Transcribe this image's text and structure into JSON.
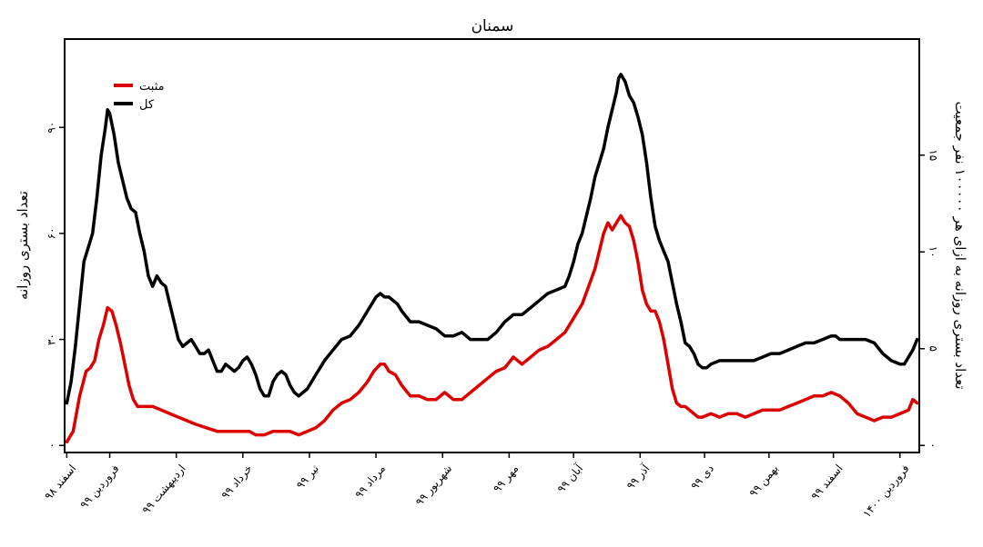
{
  "chart_data": {
    "type": "line",
    "title": "سمنان",
    "ylabel_left": "تعداد بستری روزانه",
    "ylabel_right": "تعداد بستری روزانه به ازای هر ۱۰۰۰۰۰ نفر جمعیت",
    "yticks_left": [
      {
        "value": 0,
        "label": "۰"
      },
      {
        "value": 30,
        "label": "۳۰"
      },
      {
        "value": 60,
        "label": "۶۰"
      },
      {
        "value": 90,
        "label": "۹۰"
      }
    ],
    "yticks_right": [
      {
        "value": 0,
        "label": "۰"
      },
      {
        "value": 5,
        "label": "۵"
      },
      {
        "value": 10,
        "label": "۱۰"
      },
      {
        "value": 15,
        "label": "۱۵"
      }
    ],
    "xticks": [
      {
        "day": 0,
        "label": "اسفند ۹۸"
      },
      {
        "day": 20,
        "label": "فروردین ۹۹"
      },
      {
        "day": 51,
        "label": "اردیبهشت ۹۹"
      },
      {
        "day": 82,
        "label": "خرداد ۹۹"
      },
      {
        "day": 113,
        "label": "تیر ۹۹"
      },
      {
        "day": 144,
        "label": "مرداد ۹۹"
      },
      {
        "day": 175,
        "label": "شهریور ۹۹"
      },
      {
        "day": 206,
        "label": "مهر ۹۹"
      },
      {
        "day": 236,
        "label": "آبان ۹۹"
      },
      {
        "day": 267,
        "label": "آذر ۹۹"
      },
      {
        "day": 297,
        "label": "دی ۹۹"
      },
      {
        "day": 327,
        "label": "بهمن ۹۹"
      },
      {
        "day": 357,
        "label": "اسفند ۹۹"
      },
      {
        "day": 388,
        "label": "فروردین ۱۴۰۰"
      }
    ],
    "xlim": [
      -1,
      397
    ],
    "ylim_left": [
      -2,
      115
    ],
    "ylim_right": [
      -0.365,
      21.0
    ],
    "legend_position": "top-left",
    "series": [
      {
        "name": "مثبت",
        "color": "#dd0000",
        "points": [
          [
            0,
            1
          ],
          [
            3,
            4
          ],
          [
            6,
            14
          ],
          [
            9,
            21
          ],
          [
            11,
            22
          ],
          [
            13,
            24
          ],
          [
            15,
            30
          ],
          [
            17,
            34
          ],
          [
            19,
            39
          ],
          [
            21,
            38
          ],
          [
            23,
            34
          ],
          [
            25,
            29
          ],
          [
            27,
            23
          ],
          [
            29,
            17
          ],
          [
            31,
            13
          ],
          [
            33,
            11
          ],
          [
            36,
            11
          ],
          [
            40,
            11
          ],
          [
            44,
            10
          ],
          [
            48,
            9
          ],
          [
            52,
            8
          ],
          [
            56,
            7
          ],
          [
            60,
            6
          ],
          [
            65,
            5
          ],
          [
            70,
            4
          ],
          [
            75,
            4
          ],
          [
            80,
            4
          ],
          [
            85,
            4
          ],
          [
            88,
            3
          ],
          [
            92,
            3
          ],
          [
            96,
            4
          ],
          [
            100,
            4
          ],
          [
            104,
            4
          ],
          [
            108,
            3
          ],
          [
            112,
            4
          ],
          [
            116,
            5
          ],
          [
            120,
            7
          ],
          [
            124,
            10
          ],
          [
            128,
            12
          ],
          [
            132,
            13
          ],
          [
            136,
            15
          ],
          [
            140,
            18
          ],
          [
            143,
            21
          ],
          [
            146,
            23
          ],
          [
            148,
            23
          ],
          [
            150,
            21
          ],
          [
            153,
            20
          ],
          [
            156,
            17
          ],
          [
            160,
            14
          ],
          [
            164,
            14
          ],
          [
            168,
            13
          ],
          [
            172,
            13
          ],
          [
            176,
            15
          ],
          [
            180,
            13
          ],
          [
            184,
            13
          ],
          [
            188,
            15
          ],
          [
            192,
            17
          ],
          [
            196,
            19
          ],
          [
            200,
            21
          ],
          [
            204,
            22
          ],
          [
            208,
            25
          ],
          [
            212,
            23
          ],
          [
            216,
            25
          ],
          [
            220,
            27
          ],
          [
            224,
            28
          ],
          [
            228,
            30
          ],
          [
            232,
            32
          ],
          [
            236,
            36
          ],
          [
            240,
            40
          ],
          [
            243,
            45
          ],
          [
            246,
            50
          ],
          [
            248,
            55
          ],
          [
            250,
            60
          ],
          [
            252,
            63
          ],
          [
            254,
            61
          ],
          [
            256,
            63
          ],
          [
            258,
            65
          ],
          [
            260,
            63
          ],
          [
            262,
            62
          ],
          [
            264,
            58
          ],
          [
            266,
            52
          ],
          [
            268,
            44
          ],
          [
            270,
            40
          ],
          [
            272,
            38
          ],
          [
            274,
            38
          ],
          [
            276,
            35
          ],
          [
            278,
            30
          ],
          [
            280,
            23
          ],
          [
            282,
            16
          ],
          [
            284,
            12
          ],
          [
            286,
            11
          ],
          [
            288,
            11
          ],
          [
            290,
            10
          ],
          [
            292,
            9
          ],
          [
            294,
            8
          ],
          [
            296,
            8
          ],
          [
            300,
            9
          ],
          [
            304,
            8
          ],
          [
            308,
            9
          ],
          [
            312,
            9
          ],
          [
            316,
            8
          ],
          [
            320,
            9
          ],
          [
            324,
            10
          ],
          [
            328,
            10
          ],
          [
            332,
            10
          ],
          [
            336,
            11
          ],
          [
            340,
            12
          ],
          [
            344,
            13
          ],
          [
            348,
            14
          ],
          [
            352,
            14
          ],
          [
            356,
            15
          ],
          [
            360,
            14
          ],
          [
            364,
            12
          ],
          [
            368,
            9
          ],
          [
            372,
            8
          ],
          [
            376,
            7
          ],
          [
            380,
            8
          ],
          [
            384,
            8
          ],
          [
            388,
            9
          ],
          [
            392,
            10
          ],
          [
            394,
            13
          ],
          [
            396,
            12
          ]
        ]
      },
      {
        "name": "کل",
        "color": "#000000",
        "points": [
          [
            0,
            12
          ],
          [
            2,
            18
          ],
          [
            4,
            28
          ],
          [
            6,
            40
          ],
          [
            8,
            52
          ],
          [
            10,
            56
          ],
          [
            12,
            60
          ],
          [
            14,
            70
          ],
          [
            16,
            82
          ],
          [
            18,
            90
          ],
          [
            19,
            95
          ],
          [
            20,
            94
          ],
          [
            22,
            88
          ],
          [
            24,
            80
          ],
          [
            26,
            75
          ],
          [
            28,
            70
          ],
          [
            30,
            67
          ],
          [
            32,
            66
          ],
          [
            34,
            60
          ],
          [
            36,
            55
          ],
          [
            38,
            48
          ],
          [
            40,
            45
          ],
          [
            42,
            48
          ],
          [
            44,
            46
          ],
          [
            46,
            45
          ],
          [
            48,
            40
          ],
          [
            50,
            35
          ],
          [
            52,
            30
          ],
          [
            54,
            28
          ],
          [
            56,
            29
          ],
          [
            58,
            30
          ],
          [
            60,
            28
          ],
          [
            62,
            26
          ],
          [
            64,
            26
          ],
          [
            66,
            27
          ],
          [
            68,
            24
          ],
          [
            70,
            21
          ],
          [
            72,
            21
          ],
          [
            74,
            23
          ],
          [
            76,
            22
          ],
          [
            78,
            21
          ],
          [
            80,
            22
          ],
          [
            82,
            24
          ],
          [
            84,
            25
          ],
          [
            86,
            23
          ],
          [
            88,
            20
          ],
          [
            90,
            16
          ],
          [
            92,
            14
          ],
          [
            94,
            14
          ],
          [
            96,
            18
          ],
          [
            98,
            20
          ],
          [
            100,
            21
          ],
          [
            102,
            20
          ],
          [
            104,
            17
          ],
          [
            106,
            15
          ],
          [
            108,
            14
          ],
          [
            110,
            15
          ],
          [
            112,
            16
          ],
          [
            114,
            18
          ],
          [
            116,
            20
          ],
          [
            118,
            22
          ],
          [
            120,
            24
          ],
          [
            124,
            27
          ],
          [
            128,
            30
          ],
          [
            132,
            31
          ],
          [
            136,
            34
          ],
          [
            140,
            38
          ],
          [
            142,
            40
          ],
          [
            144,
            42
          ],
          [
            146,
            43
          ],
          [
            148,
            42
          ],
          [
            150,
            42
          ],
          [
            152,
            41
          ],
          [
            154,
            40
          ],
          [
            156,
            38
          ],
          [
            160,
            35
          ],
          [
            164,
            35
          ],
          [
            168,
            34
          ],
          [
            172,
            33
          ],
          [
            176,
            31
          ],
          [
            180,
            31
          ],
          [
            184,
            32
          ],
          [
            188,
            30
          ],
          [
            192,
            30
          ],
          [
            196,
            30
          ],
          [
            200,
            32
          ],
          [
            204,
            35
          ],
          [
            208,
            37
          ],
          [
            212,
            37
          ],
          [
            216,
            39
          ],
          [
            220,
            41
          ],
          [
            224,
            43
          ],
          [
            228,
            44
          ],
          [
            232,
            45
          ],
          [
            234,
            48
          ],
          [
            236,
            52
          ],
          [
            238,
            57
          ],
          [
            240,
            60
          ],
          [
            242,
            65
          ],
          [
            244,
            70
          ],
          [
            246,
            76
          ],
          [
            248,
            80
          ],
          [
            250,
            84
          ],
          [
            252,
            90
          ],
          [
            254,
            95
          ],
          [
            256,
            100
          ],
          [
            257,
            104
          ],
          [
            258,
            105
          ],
          [
            260,
            103
          ],
          [
            262,
            99
          ],
          [
            264,
            97
          ],
          [
            266,
            93
          ],
          [
            268,
            88
          ],
          [
            270,
            80
          ],
          [
            272,
            70
          ],
          [
            274,
            62
          ],
          [
            276,
            58
          ],
          [
            278,
            55
          ],
          [
            280,
            52
          ],
          [
            282,
            46
          ],
          [
            284,
            40
          ],
          [
            286,
            35
          ],
          [
            288,
            29
          ],
          [
            290,
            28
          ],
          [
            292,
            26
          ],
          [
            294,
            23
          ],
          [
            296,
            22
          ],
          [
            298,
            22
          ],
          [
            300,
            23
          ],
          [
            304,
            24
          ],
          [
            308,
            24
          ],
          [
            312,
            24
          ],
          [
            316,
            24
          ],
          [
            320,
            24
          ],
          [
            324,
            25
          ],
          [
            328,
            26
          ],
          [
            332,
            26
          ],
          [
            336,
            27
          ],
          [
            340,
            28
          ],
          [
            344,
            29
          ],
          [
            348,
            29
          ],
          [
            352,
            30
          ],
          [
            356,
            31
          ],
          [
            358,
            31
          ],
          [
            360,
            30
          ],
          [
            364,
            30
          ],
          [
            368,
            30
          ],
          [
            372,
            30
          ],
          [
            376,
            29
          ],
          [
            380,
            26
          ],
          [
            384,
            24
          ],
          [
            388,
            23
          ],
          [
            390,
            23
          ],
          [
            392,
            25
          ],
          [
            394,
            27
          ],
          [
            396,
            30
          ]
        ]
      }
    ]
  }
}
